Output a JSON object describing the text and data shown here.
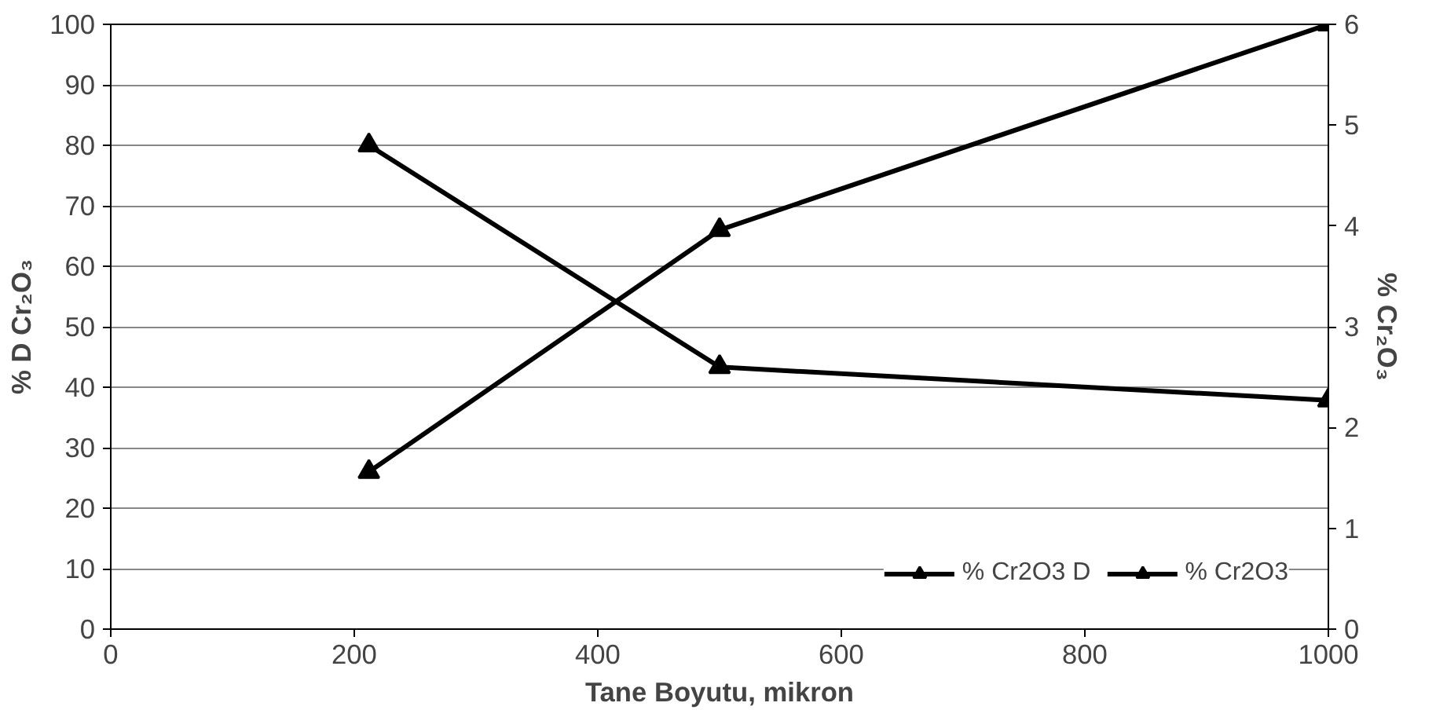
{
  "chart_data": {
    "type": "line",
    "xlabel": "Tane Boyutu, mikron",
    "ylabel": "% D Cr₂O₃",
    "y2label": "% Cr₂O₃",
    "xlim": [
      0,
      1000
    ],
    "xticks": [
      0,
      200,
      400,
      600,
      800,
      1000
    ],
    "ylim": [
      0,
      100
    ],
    "yticks": [
      0,
      10,
      20,
      30,
      40,
      50,
      60,
      70,
      80,
      90,
      100
    ],
    "y2lim": [
      0,
      6
    ],
    "y2ticks": [
      0,
      1,
      2,
      3,
      4,
      5,
      6
    ],
    "grid": "y",
    "legend": "bottom right",
    "marker": "triangle",
    "line_style": "solid",
    "series": [
      {
        "name": "% Cr2O3 D",
        "color": "#000000",
        "x": [
          212,
          500,
          1000
        ],
        "values": [
          26,
          66,
          100
        ]
      },
      {
        "name": "% Cr2O3",
        "color": "#000000",
        "axis": "y2",
        "x": [
          212,
          500,
          1000
        ],
        "values": [
          4.8,
          2.6,
          2.27
        ]
      }
    ]
  }
}
